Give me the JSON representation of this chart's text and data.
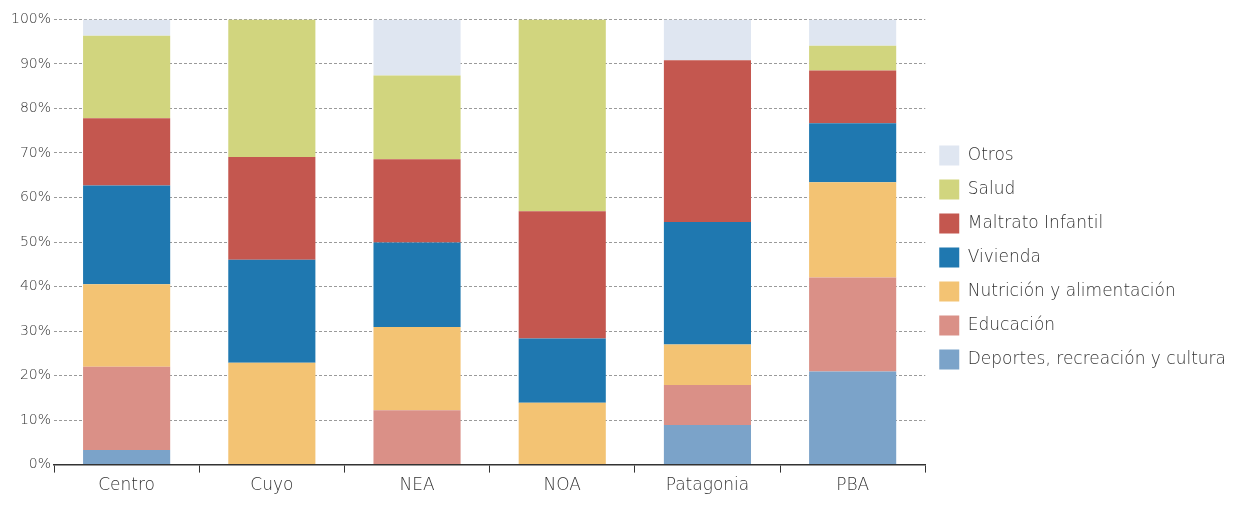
{
  "chart_data": {
    "type": "bar",
    "stacked": true,
    "categories": [
      "Centro",
      "Cuyo",
      "NEA",
      "NOA",
      "Patagonia",
      "PBA"
    ],
    "series": [
      {
        "name": "Deportes, recreación y cultura",
        "color": "#7ba3c9",
        "values": [
          3.3,
          0,
          0,
          0,
          8.9,
          20.9
        ]
      },
      {
        "name": "Educación",
        "color": "#da9087",
        "values": [
          18.7,
          0,
          12.2,
          0,
          9.0,
          21.1
        ]
      },
      {
        "name": "Nutrición y alimentación",
        "color": "#f3c373",
        "values": [
          18.5,
          22.9,
          18.7,
          13.9,
          9.1,
          21.4
        ]
      },
      {
        "name": "Vivienda",
        "color": "#1f78b0",
        "values": [
          22.2,
          23.1,
          19.0,
          14.4,
          27.5,
          13.3
        ]
      },
      {
        "name": "Maltrato Infantil",
        "color": "#c4574f",
        "values": [
          15.1,
          23.1,
          18.7,
          28.6,
          36.3,
          11.8
        ]
      },
      {
        "name": "Salud",
        "color": "#d1d57e",
        "values": [
          18.5,
          30.9,
          18.8,
          43.1,
          0,
          5.6
        ]
      },
      {
        "name": "Otros",
        "color": "#dfe6f1",
        "values": [
          3.7,
          0,
          12.6,
          0,
          9.2,
          5.9
        ]
      }
    ],
    "ylim": [
      0,
      100
    ],
    "yticks": [
      {
        "value": 0,
        "label": "0%"
      },
      {
        "value": 10,
        "label": "10%"
      },
      {
        "value": 20,
        "label": "20%"
      },
      {
        "value": 30,
        "label": "30%"
      },
      {
        "value": 40,
        "label": "40%"
      },
      {
        "value": 50,
        "label": "50%"
      },
      {
        "value": 60,
        "label": "60%"
      },
      {
        "value": 70,
        "label": "70%"
      },
      {
        "value": 80,
        "label": "80%"
      },
      {
        "value": 90,
        "label": "90%"
      },
      {
        "value": 100,
        "label": "100%"
      }
    ],
    "grid": "y",
    "legend": "right"
  }
}
